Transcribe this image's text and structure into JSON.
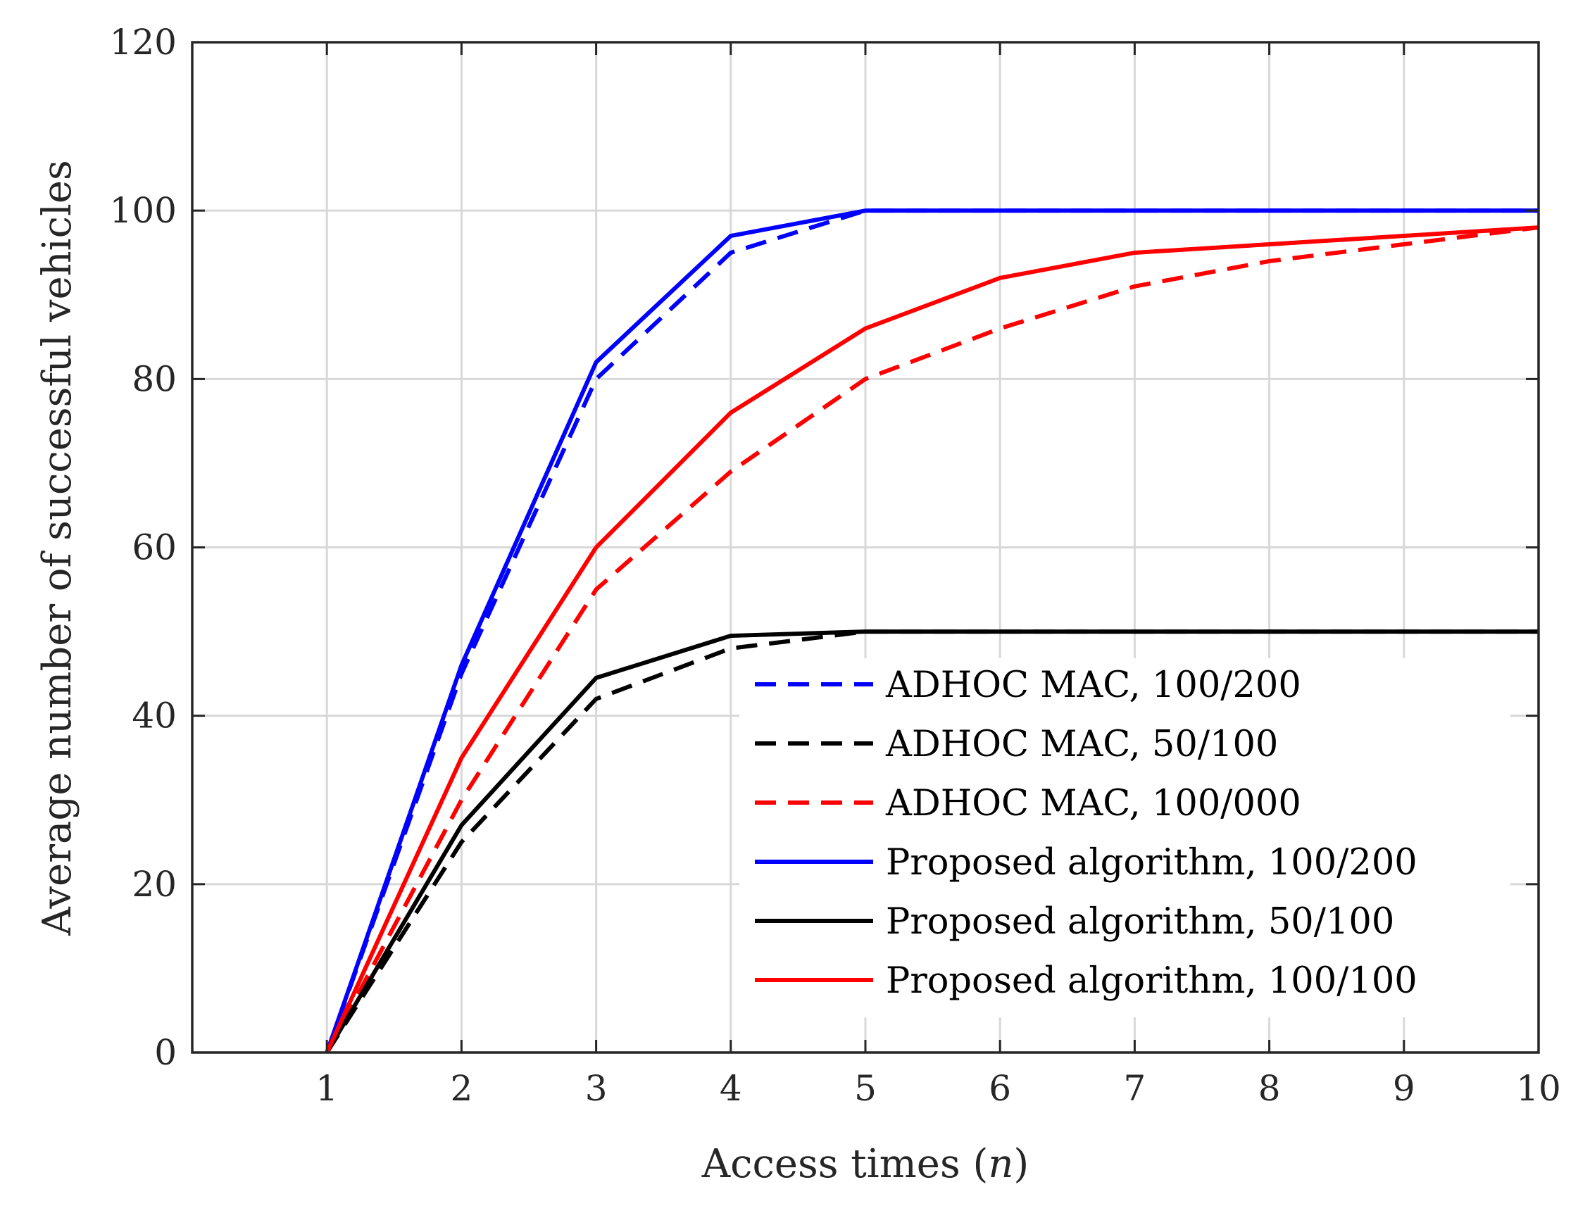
{
  "chart_data": {
    "type": "line",
    "title": "",
    "xlabel": "Access times (n)",
    "xlabel_prefix": "Access times ",
    "xlabel_var": "n",
    "ylabel": "Average number of successful vehicles",
    "xlim": [
      0,
      10
    ],
    "ylim": [
      0,
      120
    ],
    "xticks": [
      "1",
      "2",
      "3",
      "4",
      "5",
      "6",
      "7",
      "8",
      "9",
      "10"
    ],
    "yticks": [
      "0",
      "20",
      "40",
      "60",
      "80",
      "100",
      "120"
    ],
    "grid": true,
    "legend_position": "bottom-right",
    "x": [
      1,
      2,
      3,
      4,
      5,
      6,
      7,
      8,
      9,
      10
    ],
    "series": [
      {
        "name": "ADHOC MAC, 100/200",
        "color": "#0000ff",
        "dash": true,
        "values": [
          0,
          45,
          80,
          95,
          100,
          100,
          100,
          100,
          100,
          100
        ]
      },
      {
        "name": "ADHOC MAC, 50/100",
        "color": "#000000",
        "dash": true,
        "values": [
          0,
          25,
          42,
          48,
          50,
          50,
          50,
          50,
          50,
          50
        ]
      },
      {
        "name": "ADHOC MAC, 100/000",
        "color": "#ff0000",
        "dash": true,
        "values": [
          0,
          30,
          55,
          69,
          80,
          86,
          91,
          94,
          96,
          98
        ]
      },
      {
        "name": "Proposed algorithm, 100/200",
        "color": "#0000ff",
        "dash": false,
        "values": [
          0,
          46,
          82,
          97,
          100,
          100,
          100,
          100,
          100,
          100
        ]
      },
      {
        "name": "Proposed algorithm, 50/100",
        "color": "#000000",
        "dash": false,
        "values": [
          0,
          27,
          44.5,
          49.5,
          50,
          50,
          50,
          50,
          50,
          50
        ]
      },
      {
        "name": "Proposed algorithm, 100/100",
        "color": "#ff0000",
        "dash": false,
        "values": [
          0,
          35,
          60,
          76,
          86,
          92,
          95,
          96,
          97,
          98
        ]
      }
    ]
  }
}
